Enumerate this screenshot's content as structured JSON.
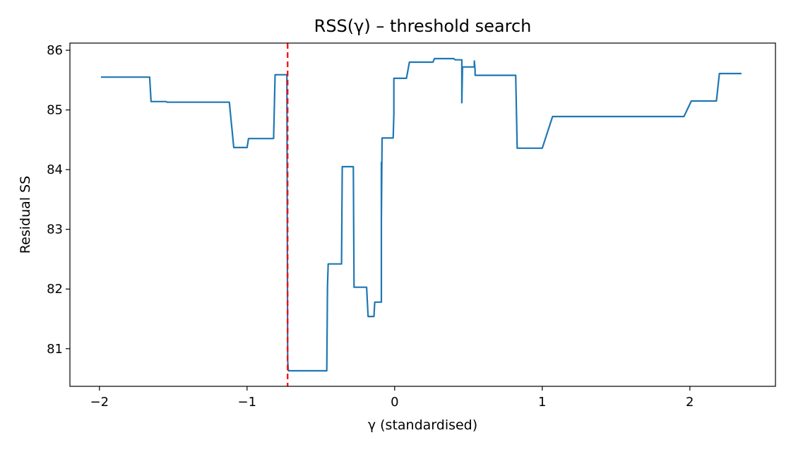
{
  "chart_data": {
    "type": "line",
    "title": "RSS(γ) – threshold search",
    "xlabel": "γ (standardised)",
    "ylabel": "Residual SS",
    "xlim": [
      -2.2,
      2.58
    ],
    "ylim": [
      80.37,
      86.12
    ],
    "x_ticks": [
      -2,
      -1,
      0,
      1,
      2
    ],
    "x_tick_labels": [
      "−2",
      "−1",
      "0",
      "1",
      "2"
    ],
    "y_ticks": [
      81,
      82,
      83,
      84,
      85,
      86
    ],
    "y_tick_labels": [
      "81",
      "82",
      "83",
      "84",
      "85",
      "86"
    ],
    "grid": false,
    "legend": "none",
    "series": [
      {
        "color": "#1f77b4",
        "style": "solid",
        "x": [
          -1.99,
          -1.66,
          -1.65,
          -1.55,
          -1.54,
          -1.12,
          -1.09,
          -1.0,
          -0.99,
          -0.82,
          -0.81,
          -0.73,
          -0.725,
          -0.72,
          -0.46,
          -0.455,
          -0.45,
          -0.36,
          -0.355,
          -0.28,
          -0.275,
          -0.19,
          -0.18,
          -0.14,
          -0.135,
          -0.09,
          -0.09,
          -0.09,
          -0.085,
          -0.01,
          -0.005,
          -0.005,
          0.0,
          0.08,
          0.1,
          0.26,
          0.27,
          0.4,
          0.41,
          0.455,
          0.455,
          0.46,
          0.46,
          0.54,
          0.54,
          0.545,
          0.545,
          0.55,
          0.82,
          0.83,
          1.0,
          1.07,
          1.96,
          2.01,
          2.18,
          2.2,
          2.35
        ],
        "y": [
          85.55,
          85.55,
          85.14,
          85.14,
          85.13,
          85.13,
          84.37,
          84.37,
          84.52,
          84.52,
          85.59,
          85.59,
          80.8,
          80.63,
          80.63,
          82.05,
          82.42,
          82.42,
          84.05,
          84.05,
          82.03,
          82.03,
          81.54,
          81.54,
          81.78,
          81.78,
          84.12,
          83.15,
          84.53,
          84.53,
          84.93,
          85.53,
          85.53,
          85.53,
          85.8,
          85.8,
          85.86,
          85.86,
          85.84,
          85.84,
          85.12,
          85.72,
          85.72,
          85.72,
          85.82,
          85.67,
          85.58,
          85.58,
          85.58,
          84.36,
          84.36,
          84.89,
          84.89,
          85.15,
          85.15,
          85.61,
          85.61
        ]
      }
    ],
    "vline": {
      "x": -0.725,
      "color": "#ff0000",
      "style": "dashed"
    }
  }
}
